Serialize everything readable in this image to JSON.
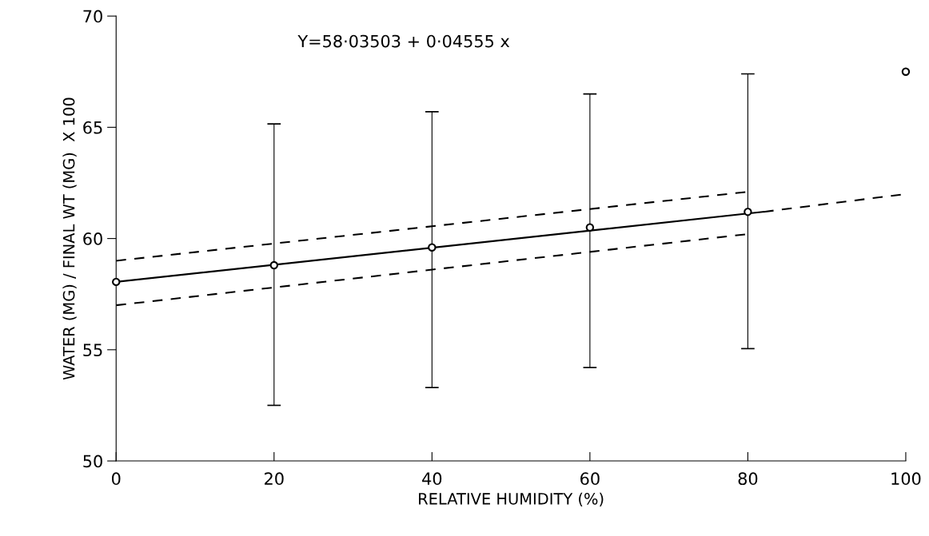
{
  "chart_data": {
    "type": "scatter",
    "xlabel": "RELATIVE HUMIDITY (%)",
    "ylabel": "WATER (MG) / FINAL WT (MG)  X 100",
    "annotations": [
      "Y=58·03503 + 0·04555 x"
    ],
    "xlim": [
      0,
      100
    ],
    "xticks": [
      0,
      20,
      40,
      60,
      80,
      100
    ],
    "ylim": [
      50,
      70
    ],
    "yticks": [
      50,
      55,
      60,
      65,
      70
    ],
    "grid": false,
    "legend": false,
    "series": [
      {
        "type": "scatter",
        "color": "#000000",
        "marker": "circle",
        "x": [
          0,
          20,
          40,
          60,
          80,
          100
        ],
        "values": [
          58.05,
          58.8,
          59.6,
          60.5,
          61.2,
          67.5
        ],
        "errors": [
          null,
          [
            52.5,
            65.15
          ],
          [
            53.3,
            65.7
          ],
          [
            54.2,
            66.5
          ],
          [
            55.05,
            67.4
          ],
          null
        ]
      },
      {
        "type": "line",
        "color": "#000000",
        "line_style": "solid",
        "x": [
          0,
          82
        ],
        "values": [
          58.05,
          61.2
        ]
      },
      {
        "type": "line",
        "color": "#000000",
        "line_style": "dashed",
        "x": [
          82,
          100
        ],
        "values": [
          61.2,
          62.0
        ]
      },
      {
        "type": "line",
        "color": "#000000",
        "line_style": "dashed",
        "x": [
          0,
          80
        ],
        "values": [
          59.0,
          62.1
        ]
      },
      {
        "type": "line",
        "color": "#000000",
        "line_style": "dashed",
        "x": [
          0,
          80
        ],
        "values": [
          57.0,
          60.2
        ]
      }
    ]
  }
}
